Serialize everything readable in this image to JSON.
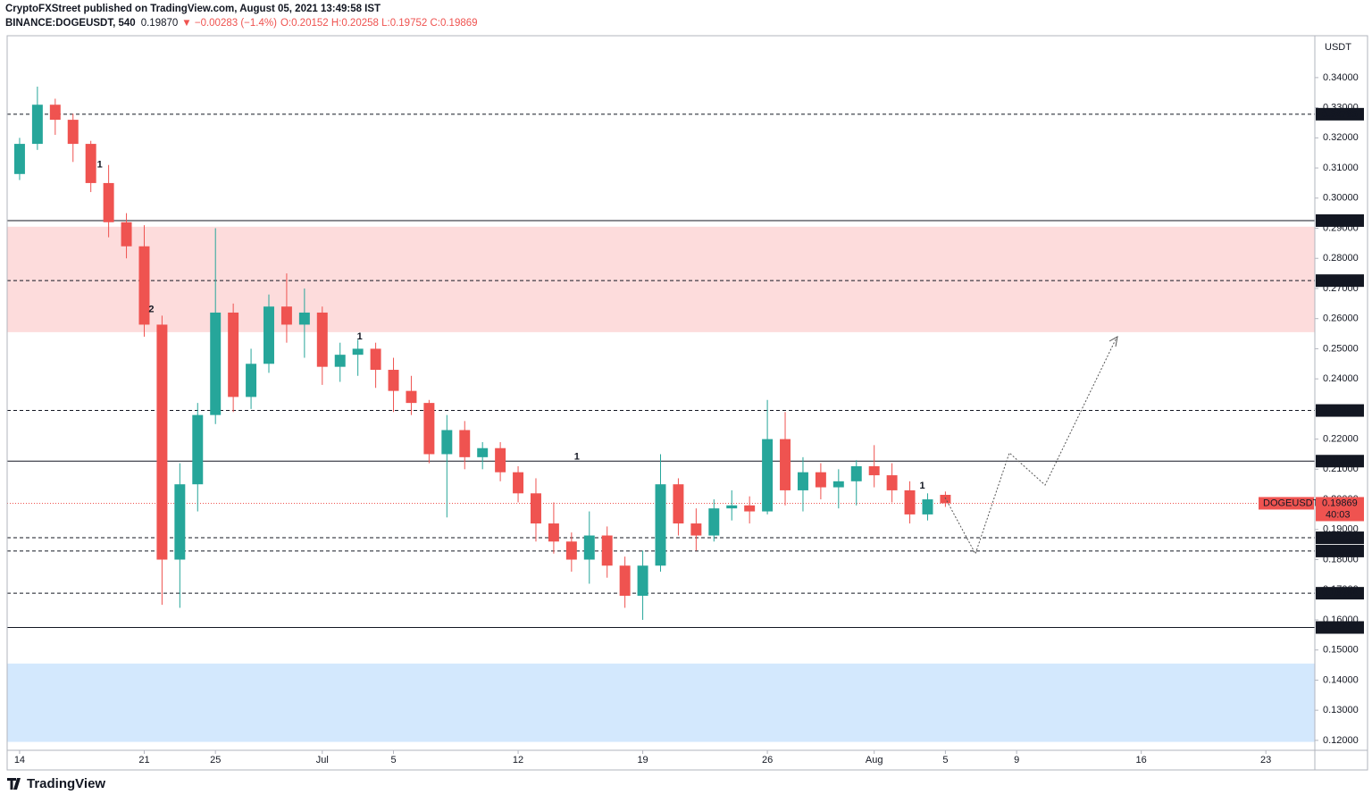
{
  "header": {
    "line1": "CryptoFXStreet published on TradingView.com, August 05, 2021 13:49:58 IST",
    "symbol": "BINANCE:DOGEUSDT, 540",
    "price": "0.19870",
    "change": "▼ −0.00283 (−1.4%)",
    "ohlc": "O:0.20152 H:0.20258 L:0.19752 C:0.19869"
  },
  "footer": {
    "brand": "TradingView"
  },
  "chart_data": {
    "type": "candlestick",
    "y_axis_label": "USDT",
    "x": [
      0,
      1,
      2,
      3,
      4,
      5,
      6,
      7,
      8,
      9,
      10,
      11,
      12,
      13,
      14,
      15,
      16,
      17,
      18,
      19,
      20,
      21,
      22,
      23,
      24,
      25,
      26,
      27,
      28,
      29,
      30,
      31,
      32,
      33,
      34,
      35,
      36,
      37,
      38,
      39,
      40,
      41,
      42,
      43,
      44,
      45,
      46,
      47,
      48,
      49,
      50,
      51,
      52
    ],
    "open": [
      0.308,
      0.318,
      0.331,
      0.326,
      0.318,
      0.305,
      0.292,
      0.284,
      0.258,
      0.18,
      0.205,
      0.228,
      0.262,
      0.234,
      0.245,
      0.264,
      0.258,
      0.262,
      0.244,
      0.248,
      0.25,
      0.243,
      0.236,
      0.232,
      0.215,
      0.223,
      0.214,
      0.217,
      0.209,
      0.202,
      0.192,
      0.186,
      0.18,
      0.188,
      0.178,
      0.168,
      0.178,
      0.205,
      0.192,
      0.188,
      0.197,
      0.198,
      0.196,
      0.22,
      0.203,
      0.209,
      0.204,
      0.206,
      0.211,
      0.208,
      0.203,
      0.195,
      0.2015
    ],
    "high": [
      0.32,
      0.337,
      0.333,
      0.328,
      0.319,
      0.311,
      0.295,
      0.291,
      0.261,
      0.212,
      0.232,
      0.29,
      0.265,
      0.25,
      0.268,
      0.275,
      0.27,
      0.264,
      0.252,
      0.253,
      0.252,
      0.247,
      0.241,
      0.233,
      0.228,
      0.226,
      0.219,
      0.219,
      0.211,
      0.207,
      0.199,
      0.189,
      0.196,
      0.191,
      0.181,
      0.183,
      0.215,
      0.207,
      0.197,
      0.2,
      0.203,
      0.201,
      0.233,
      0.229,
      0.214,
      0.212,
      0.21,
      0.213,
      0.218,
      0.212,
      0.206,
      0.202,
      0.2026
    ],
    "low": [
      0.306,
      0.316,
      0.321,
      0.312,
      0.302,
      0.287,
      0.28,
      0.254,
      0.165,
      0.164,
      0.196,
      0.225,
      0.229,
      0.23,
      0.242,
      0.252,
      0.247,
      0.238,
      0.239,
      0.241,
      0.237,
      0.229,
      0.228,
      0.212,
      0.194,
      0.21,
      0.21,
      0.206,
      0.199,
      0.186,
      0.182,
      0.176,
      0.172,
      0.174,
      0.164,
      0.16,
      0.176,
      0.188,
      0.183,
      0.186,
      0.193,
      0.192,
      0.195,
      0.198,
      0.196,
      0.2,
      0.197,
      0.198,
      0.204,
      0.199,
      0.192,
      0.193,
      0.1975
    ],
    "close": [
      0.318,
      0.331,
      0.326,
      0.318,
      0.305,
      0.292,
      0.284,
      0.258,
      0.18,
      0.205,
      0.228,
      0.262,
      0.234,
      0.245,
      0.264,
      0.258,
      0.262,
      0.244,
      0.248,
      0.25,
      0.243,
      0.236,
      0.232,
      0.215,
      0.223,
      0.214,
      0.217,
      0.209,
      0.202,
      0.192,
      0.186,
      0.18,
      0.188,
      0.178,
      0.168,
      0.178,
      0.205,
      0.192,
      0.188,
      0.197,
      0.198,
      0.196,
      0.22,
      0.203,
      0.209,
      0.204,
      0.206,
      0.211,
      0.208,
      0.203,
      0.195,
      0.2,
      0.1987
    ],
    "up_color": "#26a69a",
    "down_color": "#ef5350",
    "xlim": [
      -0.7,
      72.75
    ],
    "xticks": [
      {
        "value": 0,
        "label": "14"
      },
      {
        "value": 7,
        "label": "21"
      },
      {
        "value": 11,
        "label": "25"
      },
      {
        "value": 17,
        "label": "Jul"
      },
      {
        "value": 21,
        "label": "5"
      },
      {
        "value": 28,
        "label": "12"
      },
      {
        "value": 35,
        "label": "19"
      },
      {
        "value": 42,
        "label": "26"
      },
      {
        "value": 48,
        "label": "Aug"
      },
      {
        "value": 52,
        "label": "5"
      },
      {
        "value": 56,
        "label": "9"
      },
      {
        "value": 63,
        "label": "16"
      },
      {
        "value": 70,
        "label": "23"
      }
    ],
    "ylim": [
      0.1167,
      0.3539
    ],
    "yticks": [
      {
        "value": 0.12,
        "label": "0.12000"
      },
      {
        "value": 0.13,
        "label": "0.13000"
      },
      {
        "value": 0.14,
        "label": "0.14000"
      },
      {
        "value": 0.15,
        "label": "0.15000"
      },
      {
        "value": 0.16,
        "label": "0.16000"
      },
      {
        "value": 0.17,
        "label": "0.17000"
      },
      {
        "value": 0.18,
        "label": "0.18000"
      },
      {
        "value": 0.19,
        "label": "0.19000"
      },
      {
        "value": 0.2,
        "label": "0.20000"
      },
      {
        "value": 0.21,
        "label": "0.21000"
      },
      {
        "value": 0.22,
        "label": "0.22000"
      },
      {
        "value": 0.23,
        "label": "0.23000"
      },
      {
        "value": 0.24,
        "label": "0.24000"
      },
      {
        "value": 0.25,
        "label": "0.25000"
      },
      {
        "value": 0.26,
        "label": "0.26000"
      },
      {
        "value": 0.27,
        "label": "0.27000"
      },
      {
        "value": 0.28,
        "label": "0.28000"
      },
      {
        "value": 0.29,
        "label": "0.29000"
      },
      {
        "value": 0.3,
        "label": "0.30000"
      },
      {
        "value": 0.31,
        "label": "0.31000"
      },
      {
        "value": 0.32,
        "label": "0.32000"
      },
      {
        "value": 0.33,
        "label": "0.33000"
      },
      {
        "value": 0.34,
        "label": "0.34000"
      }
    ],
    "levels": [
      {
        "value": 0.32785,
        "label": "0.32785",
        "style": "dashed"
      },
      {
        "value": 0.29254,
        "label": "0.29254",
        "style": "solid"
      },
      {
        "value": 0.27261,
        "label": "0.27261",
        "style": "dashed"
      },
      {
        "value": 0.2295,
        "label": "0.22950",
        "style": "dashed"
      },
      {
        "value": 0.21269,
        "label": "0.21269",
        "style": "solid"
      },
      {
        "value": 0.18725,
        "label": "0.18725",
        "style": "dashed"
      },
      {
        "value": 0.18285,
        "label": "0.18285",
        "style": "dashed"
      },
      {
        "value": 0.16884,
        "label": "0.16884",
        "style": "dashed"
      },
      {
        "value": 0.15747,
        "label": "0.15747",
        "style": "solid"
      }
    ],
    "zones": [
      {
        "from": 0.2555,
        "to": 0.2905,
        "color": "#fddcdc"
      },
      {
        "from": 0.1195,
        "to": 0.1455,
        "color": "#d3e8fd"
      }
    ],
    "last": {
      "value": 0.19869,
      "label": "0.19869",
      "name": "DOGEUSDT",
      "countdown": "40:03",
      "color": "#ef5350"
    },
    "annotations": [
      {
        "text": "1",
        "x": 4.5,
        "y": 0.311
      },
      {
        "text": "2",
        "x": 7.4,
        "y": 0.263
      },
      {
        "text": "1",
        "x": 19.1,
        "y": 0.254
      },
      {
        "text": "1",
        "x": 31.3,
        "y": 0.214
      },
      {
        "text": "1",
        "x": 50.7,
        "y": 0.2045
      }
    ]
  }
}
